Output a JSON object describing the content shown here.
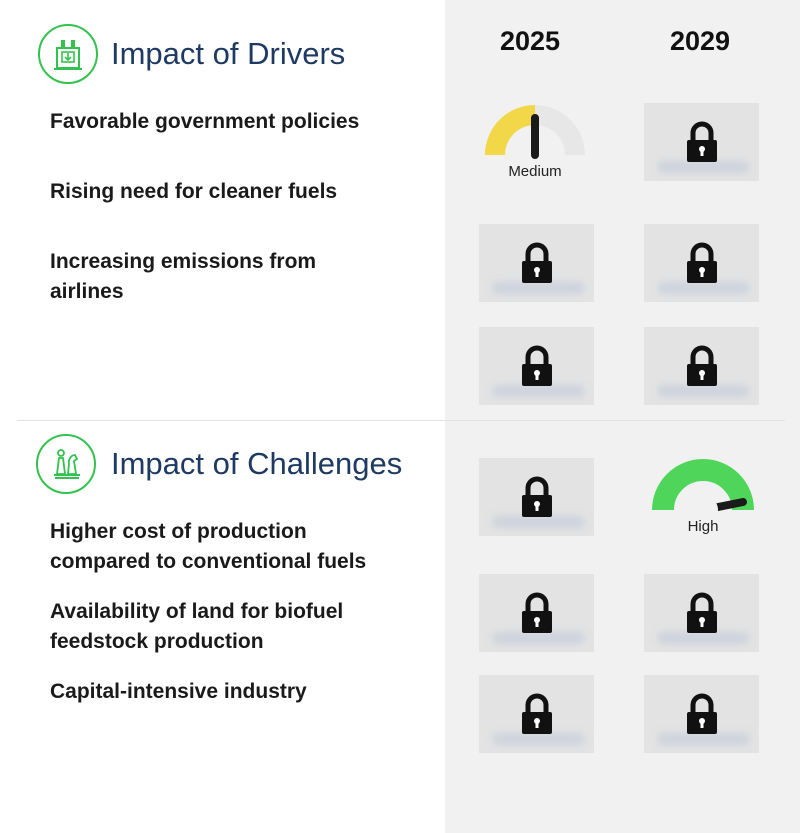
{
  "drivers": {
    "title": "Impact of Drivers",
    "icon": "factory-icon",
    "items": [
      {
        "label": "Favorable government policies"
      },
      {
        "label": "Rising need for cleaner fuels"
      },
      {
        "label": "Increasing emissions from airlines"
      }
    ]
  },
  "challenges": {
    "title": "Impact of Challenges",
    "icon": "chess-icon",
    "items": [
      {
        "label": "Higher cost of production compared to conventional fuels"
      },
      {
        "label": "Availability of land for biofuel feedstock production"
      },
      {
        "label": "Capital-intensive industry"
      }
    ]
  },
  "years": [
    "2025",
    "2029"
  ],
  "visible_ratings": {
    "drivers_row1_2025": {
      "label": "Medium",
      "color": "#f2d848"
    },
    "challenges_row1_2029": {
      "label": "High",
      "color": "#4fd65a"
    }
  },
  "colors": {
    "accent_green": "#33c24d",
    "title_blue": "#1e3a63",
    "panel_bg": "#f1f1f1",
    "lock_box_bg": "#e3e3e3"
  }
}
